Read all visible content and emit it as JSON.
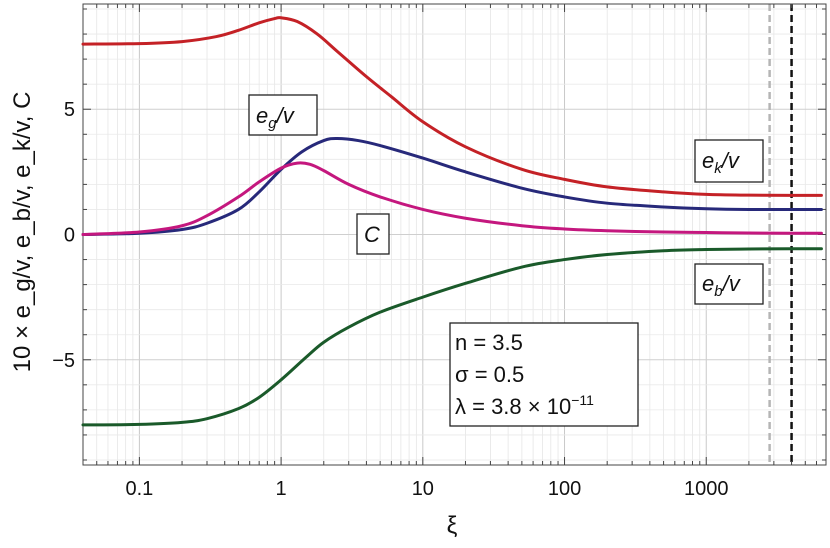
{
  "chart_data": {
    "type": "line",
    "xscale": "log",
    "xlim": [
      0.04,
      7000
    ],
    "ylim": [
      -9.2,
      9.2
    ],
    "xlabel": "ξ",
    "ylabel": "10 × e_g/v, e_b/v, e_k/v, C",
    "grid": true,
    "x_ticks": [
      {
        "value": 0.1,
        "label": "0.1"
      },
      {
        "value": 1,
        "label": "1"
      },
      {
        "value": 10,
        "label": "10"
      },
      {
        "value": 100,
        "label": "100"
      },
      {
        "value": 1000,
        "label": "1000"
      }
    ],
    "y_ticks": [
      {
        "value": -5,
        "label": "−5"
      },
      {
        "value": 0,
        "label": "0"
      },
      {
        "value": 5,
        "label": "5"
      }
    ],
    "vlines": [
      {
        "x": 2800,
        "color": "#b5b5b5",
        "style": "dashed"
      },
      {
        "x": 4000,
        "color": "#111111",
        "style": "dashed"
      }
    ],
    "series": [
      {
        "name": "e_g/v",
        "color": "#c42126",
        "x": [
          0.04,
          0.1,
          0.2,
          0.35,
          0.5,
          0.7,
          0.9,
          1.0,
          1.3,
          1.8,
          2.5,
          4,
          6,
          10,
          20,
          50,
          100,
          200,
          500,
          1000,
          2000,
          4000,
          6500
        ],
        "y": [
          7.6,
          7.62,
          7.7,
          7.9,
          8.15,
          8.45,
          8.62,
          8.65,
          8.5,
          8.0,
          7.3,
          6.3,
          5.5,
          4.5,
          3.5,
          2.6,
          2.2,
          1.9,
          1.7,
          1.6,
          1.57,
          1.56,
          1.56
        ]
      },
      {
        "name": "e_k/v",
        "color": "#27297a",
        "x": [
          0.04,
          0.1,
          0.2,
          0.3,
          0.5,
          0.7,
          1.0,
          1.4,
          2.0,
          2.5,
          3.5,
          5,
          10,
          20,
          50,
          100,
          200,
          500,
          1000,
          2000,
          4000,
          6500
        ],
        "y": [
          0.0,
          0.05,
          0.2,
          0.45,
          1.0,
          1.7,
          2.6,
          3.3,
          3.75,
          3.83,
          3.75,
          3.55,
          3.05,
          2.5,
          1.85,
          1.5,
          1.25,
          1.1,
          1.03,
          1.0,
          1.0,
          1.0
        ]
      },
      {
        "name": "C",
        "color": "#c4177e",
        "x": [
          0.04,
          0.1,
          0.2,
          0.3,
          0.5,
          0.7,
          1.0,
          1.3,
          1.6,
          2.0,
          3,
          5,
          10,
          20,
          50,
          100,
          200,
          500,
          1000,
          2000,
          4000,
          6500
        ],
        "y": [
          0.0,
          0.1,
          0.35,
          0.75,
          1.5,
          2.1,
          2.65,
          2.85,
          2.8,
          2.55,
          2.0,
          1.5,
          1.0,
          0.65,
          0.35,
          0.22,
          0.15,
          0.1,
          0.08,
          0.06,
          0.05,
          0.05
        ]
      },
      {
        "name": "e_b/v",
        "color": "#1a5a2a",
        "x": [
          0.04,
          0.1,
          0.2,
          0.3,
          0.5,
          0.7,
          1.0,
          1.5,
          2.0,
          3,
          5,
          10,
          20,
          50,
          100,
          200,
          500,
          1000,
          2000,
          4000,
          6500
        ],
        "y": [
          -7.6,
          -7.58,
          -7.5,
          -7.35,
          -6.95,
          -6.5,
          -5.8,
          -4.9,
          -4.3,
          -3.7,
          -3.1,
          -2.5,
          -1.95,
          -1.3,
          -1.0,
          -0.8,
          -0.65,
          -0.6,
          -0.58,
          -0.57,
          -0.57
        ]
      }
    ],
    "annotations": {
      "eg": {
        "label": "e",
        "sub": "g",
        "tail": "/v"
      },
      "ek": {
        "label": "e",
        "sub": "k",
        "tail": "/v"
      },
      "eb": {
        "label": "e",
        "sub": "b",
        "tail": "/v"
      },
      "c": {
        "label": "C"
      },
      "params": {
        "line1": "n = 3.5",
        "line2": "σ = 0.5",
        "line3_base": "λ = 3.8 × 10",
        "line3_exp": "−11"
      }
    }
  }
}
